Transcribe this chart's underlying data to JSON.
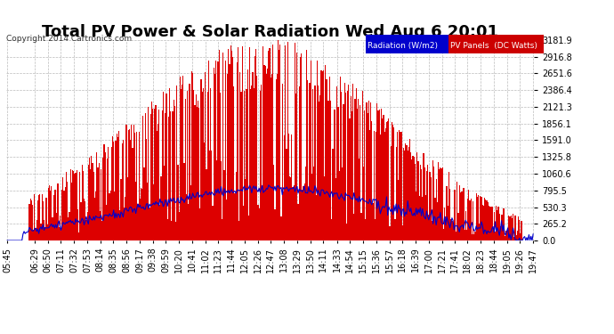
{
  "title": "Total PV Power & Solar Radiation Wed Aug 6 20:01",
  "copyright": "Copyright 2014 Cartronics.com",
  "ylabel_right": [
    "3181.9",
    "2916.8",
    "2651.6",
    "2386.4",
    "2121.3",
    "1856.1",
    "1591.0",
    "1325.8",
    "1060.6",
    "795.5",
    "530.3",
    "265.2",
    "0.0"
  ],
  "yticks_right": [
    3181.9,
    2916.8,
    2651.6,
    2386.4,
    2121.3,
    1856.1,
    1591.0,
    1325.8,
    1060.6,
    795.5,
    530.3,
    265.2,
    0.0
  ],
  "ymax": 3181.9,
  "ymin": 0.0,
  "background_color": "#ffffff",
  "plot_background": "#ffffff",
  "grid_color": "#bbbbbb",
  "pv_color": "#dd0000",
  "radiation_color": "#0000cc",
  "legend_radiation_bg": "#0000cc",
  "legend_pv_bg": "#cc0000",
  "title_fontsize": 13,
  "tick_fontsize": 7,
  "tick_labels": [
    "05:45",
    "06:29",
    "06:50",
    "07:11",
    "07:32",
    "07:53",
    "08:14",
    "08:35",
    "08:56",
    "09:17",
    "09:38",
    "09:59",
    "10:20",
    "10:41",
    "11:02",
    "11:23",
    "11:44",
    "12:05",
    "12:26",
    "12:47",
    "13:08",
    "13:29",
    "13:50",
    "14:11",
    "14:33",
    "14:54",
    "15:15",
    "15:36",
    "15:57",
    "16:18",
    "16:39",
    "17:00",
    "17:21",
    "17:41",
    "18:02",
    "18:23",
    "18:44",
    "19:05",
    "19:26",
    "19:47"
  ]
}
